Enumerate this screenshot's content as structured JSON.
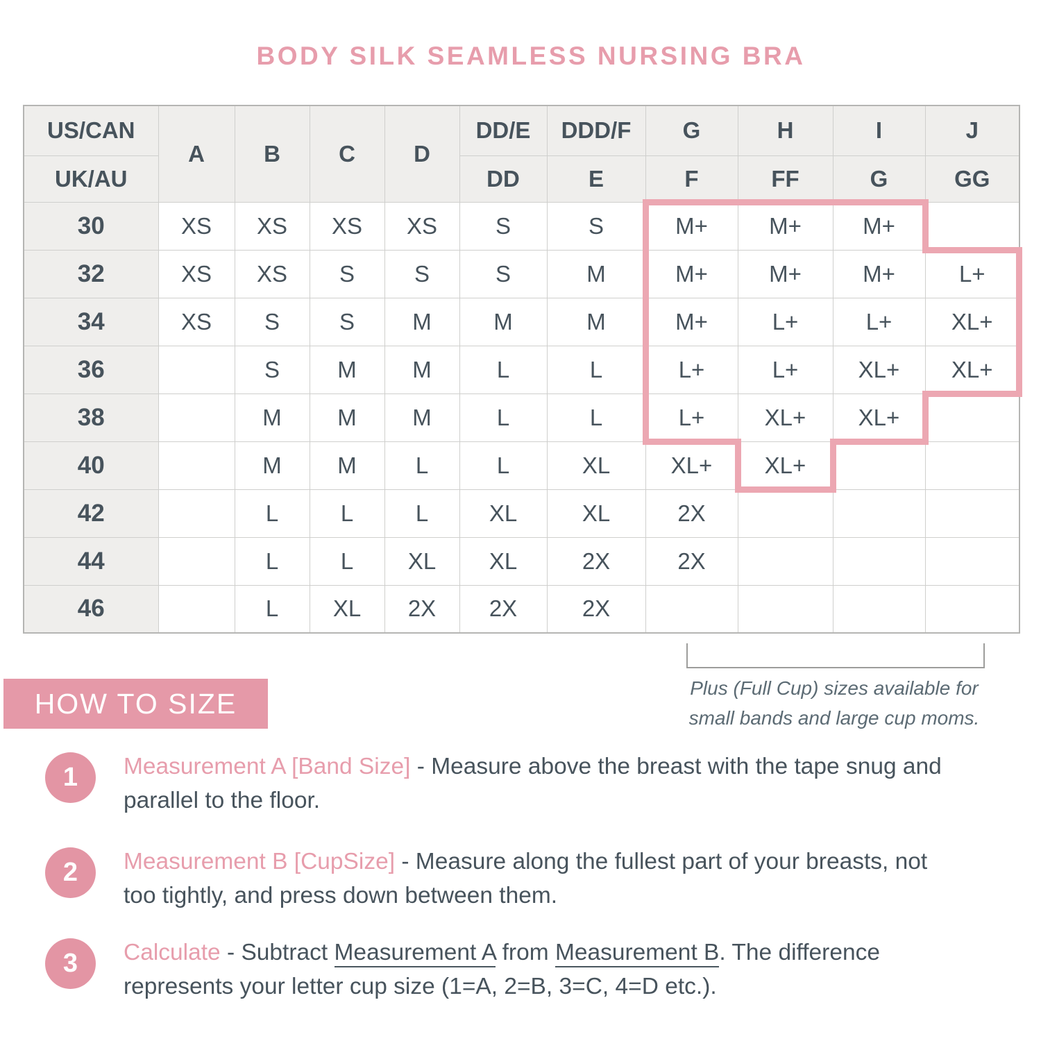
{
  "title": "BODY SILK SEAMLESS NURSING BRA",
  "colors": {
    "accent_pink": "#e79dac",
    "outline_pink": "#eca7b2",
    "heading_bg": "#e599a8",
    "circle_bg": "#e395a4",
    "dark_text": "#47535c",
    "header_bg": "#efeeec",
    "grid_line": "#cfcfcd",
    "note_gray": "#5c6b74"
  },
  "table": {
    "corner": {
      "top": "US/CAN",
      "bottom": "UK/AU"
    },
    "columns": [
      {
        "us": "A",
        "uk": null
      },
      {
        "us": "B",
        "uk": null
      },
      {
        "us": "C",
        "uk": null
      },
      {
        "us": "D",
        "uk": null
      },
      {
        "us": "DD/E",
        "uk": "DD"
      },
      {
        "us": "DDD/F",
        "uk": "E"
      },
      {
        "us": "G",
        "uk": "F"
      },
      {
        "us": "H",
        "uk": "FF"
      },
      {
        "us": "I",
        "uk": "G"
      },
      {
        "us": "J",
        "uk": "GG"
      }
    ],
    "rows": [
      {
        "band": "30",
        "cells": [
          "XS",
          "XS",
          "XS",
          "XS",
          "S",
          "S",
          "M+",
          "M+",
          "M+",
          ""
        ]
      },
      {
        "band": "32",
        "cells": [
          "XS",
          "XS",
          "S",
          "S",
          "S",
          "M",
          "M+",
          "M+",
          "M+",
          "L+"
        ]
      },
      {
        "band": "34",
        "cells": [
          "XS",
          "S",
          "S",
          "M",
          "M",
          "M",
          "M+",
          "L+",
          "L+",
          "XL+"
        ]
      },
      {
        "band": "36",
        "cells": [
          "",
          "S",
          "M",
          "M",
          "L",
          "L",
          "L+",
          "L+",
          "XL+",
          "XL+"
        ]
      },
      {
        "band": "38",
        "cells": [
          "",
          "M",
          "M",
          "M",
          "L",
          "L",
          "L+",
          "XL+",
          "XL+",
          ""
        ]
      },
      {
        "band": "40",
        "cells": [
          "",
          "M",
          "M",
          "L",
          "L",
          "XL",
          "XL+",
          "XL+",
          "",
          ""
        ]
      },
      {
        "band": "42",
        "cells": [
          "",
          "L",
          "L",
          "L",
          "XL",
          "XL",
          "2X",
          "",
          "",
          ""
        ]
      },
      {
        "band": "44",
        "cells": [
          "",
          "L",
          "L",
          "XL",
          "XL",
          "2X",
          "2X",
          "",
          "",
          ""
        ]
      },
      {
        "band": "46",
        "cells": [
          "",
          "L",
          "XL",
          "2X",
          "2X",
          "2X",
          "",
          "",
          "",
          ""
        ]
      }
    ],
    "plus_region_cells": [
      [
        0,
        6
      ],
      [
        0,
        7
      ],
      [
        0,
        8
      ],
      [
        1,
        6
      ],
      [
        1,
        7
      ],
      [
        1,
        8
      ],
      [
        1,
        9
      ],
      [
        2,
        6
      ],
      [
        2,
        7
      ],
      [
        2,
        8
      ],
      [
        2,
        9
      ],
      [
        3,
        6
      ],
      [
        3,
        7
      ],
      [
        3,
        8
      ],
      [
        3,
        9
      ],
      [
        4,
        6
      ],
      [
        4,
        7
      ],
      [
        4,
        8
      ],
      [
        5,
        7
      ]
    ]
  },
  "footnote": {
    "line1": "Plus (Full Cup) sizes available for",
    "line2": "small bands and large cup moms."
  },
  "how_to_size": {
    "heading": "HOW TO SIZE",
    "steps": [
      {
        "number": "1",
        "lead": "Measurement A [Band Size]",
        "separator": " - ",
        "body": [
          {
            "text": "Measure above the breast with the tape snug and"
          },
          {
            "break": true
          },
          {
            "text": "parallel to the floor."
          }
        ]
      },
      {
        "number": "2",
        "lead": "Measurement B [CupSize]",
        "separator": " - ",
        "body": [
          {
            "text": "Measure along the fullest part of your breasts, not"
          },
          {
            "break": true
          },
          {
            "text": "too tightly, and press down between them."
          }
        ]
      },
      {
        "number": "3",
        "lead": "Calculate",
        "separator": " - ",
        "body": [
          {
            "text": "Subtract "
          },
          {
            "text": "Measurement A",
            "underline": true
          },
          {
            "text": " from "
          },
          {
            "text": "Measurement B",
            "underline": true
          },
          {
            "text": ". The difference"
          },
          {
            "break": true
          },
          {
            "text": "represents your letter cup size (1=A, 2=B, 3=C, 4=D etc.)."
          }
        ]
      }
    ]
  }
}
